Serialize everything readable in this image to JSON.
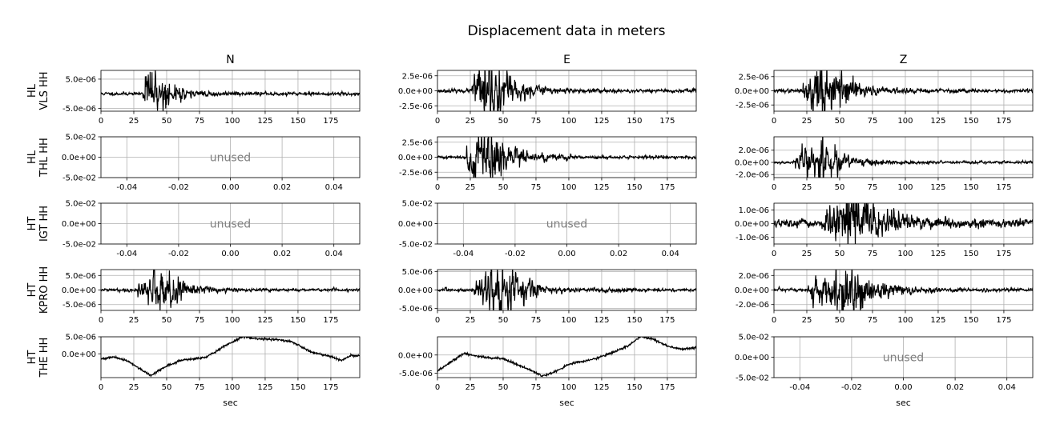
{
  "figure": {
    "title": "Displacement data in meters"
  },
  "chart_data": {
    "type": "line",
    "title": "Displacement data in meters",
    "columns": [
      "N",
      "E",
      "Z"
    ],
    "rows": [
      {
        "label_line1": "HL",
        "label_line2": "VLS HH"
      },
      {
        "label_line1": "HL",
        "label_line2": "THL HH"
      },
      {
        "label_line1": "HT",
        "label_line2": "IGT HH"
      },
      {
        "label_line1": "HT",
        "label_line2": "KPRO HH"
      },
      {
        "label_line1": "HT",
        "label_line2": "THE HH"
      }
    ],
    "grid": true,
    "line_color": "#000000",
    "unused_color": "#7f7f7f",
    "xlabel": "sec",
    "panels": [
      {
        "row": 0,
        "col": 0,
        "unused": false,
        "ylim": [
          -6e-06,
          8e-06
        ],
        "yticks": [
          "5.0e-06",
          "-5.0e-06"
        ],
        "ytick_values": [
          5e-06,
          -5e-06
        ],
        "xlim": [
          0,
          197
        ],
        "xticks": [
          0,
          25,
          50,
          75,
          100,
          125,
          150,
          175
        ],
        "onset": 32,
        "peak_t": 38,
        "env_amp": 4e-06,
        "decay": 14,
        "noise": 2.5e-07,
        "seed": 11
      },
      {
        "row": 0,
        "col": 1,
        "unused": false,
        "ylim": [
          -3.4e-06,
          3.4e-06
        ],
        "yticks": [
          "2.5e-06",
          "0.0e+00",
          "-2.5e-06"
        ],
        "ytick_values": [
          2.5e-06,
          0,
          -2.5e-06
        ],
        "xlim": [
          0,
          197
        ],
        "xticks": [
          0,
          25,
          50,
          75,
          100,
          125,
          150,
          175
        ],
        "onset": 26,
        "peak_t": 40,
        "env_amp": 2.6e-06,
        "decay": 16,
        "noise": 1.3e-07,
        "seed": 23
      },
      {
        "row": 0,
        "col": 2,
        "unused": false,
        "ylim": [
          -3.6e-06,
          3.6e-06
        ],
        "yticks": [
          "2.5e-06",
          "0.0e+00",
          "-2.5e-06"
        ],
        "ytick_values": [
          2.5e-06,
          0,
          -2.5e-06
        ],
        "xlim": [
          0,
          197
        ],
        "xticks": [
          0,
          25,
          50,
          75,
          100,
          125,
          150,
          175
        ],
        "onset": 22,
        "peak_t": 36,
        "env_amp": 2.7e-06,
        "decay": 18,
        "noise": 1.4e-07,
        "seed": 37
      },
      {
        "row": 1,
        "col": 0,
        "unused": true,
        "unused_label": "unused",
        "ylim": [
          -0.05,
          0.05
        ],
        "yticks": [
          "5.0e-02",
          "0.0e+00",
          "-5.0e-02"
        ],
        "ytick_values": [
          0.05,
          0,
          -0.05
        ],
        "xlim": [
          -0.05,
          0.05
        ],
        "xticks": [
          "-0.04",
          "-0.02",
          "0.00",
          "0.02",
          "0.04"
        ],
        "xtick_values": [
          -0.04,
          -0.02,
          0,
          0.02,
          0.04
        ]
      },
      {
        "row": 1,
        "col": 1,
        "unused": false,
        "ylim": [
          -3.4e-06,
          3.4e-06
        ],
        "yticks": [
          "2.5e-06",
          "0.0e+00",
          "-2.5e-06"
        ],
        "ytick_values": [
          2.5e-06,
          0,
          -2.5e-06
        ],
        "xlim": [
          0,
          197
        ],
        "xticks": [
          0,
          25,
          50,
          75,
          100,
          125,
          150,
          175
        ],
        "onset": 22,
        "peak_t": 36,
        "env_amp": 2.6e-06,
        "decay": 17,
        "noise": 1.2e-07,
        "seed": 41
      },
      {
        "row": 1,
        "col": 2,
        "unused": false,
        "ylim": [
          -2.5e-06,
          4.2e-06
        ],
        "yticks": [
          "2.0e-06",
          "0.0e+00",
          "-2.0e-06"
        ],
        "ytick_values": [
          2e-06,
          0,
          -2e-06
        ],
        "xlim": [
          0,
          197
        ],
        "xticks": [
          0,
          25,
          50,
          75,
          100,
          125,
          150,
          175
        ],
        "onset": 16,
        "peak_t": 35,
        "env_amp": 1.9e-06,
        "decay": 15,
        "noise": 1e-07,
        "seed": 53
      },
      {
        "row": 2,
        "col": 0,
        "unused": true,
        "unused_label": "unused",
        "ylim": [
          -0.05,
          0.05
        ],
        "yticks": [
          "5.0e-02",
          "0.0e+00",
          "-5.0e-02"
        ],
        "ytick_values": [
          0.05,
          0,
          -0.05
        ],
        "xlim": [
          -0.05,
          0.05
        ],
        "xticks": [
          "-0.04",
          "-0.02",
          "0.00",
          "0.02",
          "0.04"
        ],
        "xtick_values": [
          -0.04,
          -0.02,
          0,
          0.02,
          0.04
        ]
      },
      {
        "row": 2,
        "col": 1,
        "unused": true,
        "unused_label": "unused",
        "ylim": [
          -0.05,
          0.05
        ],
        "yticks": [
          "5.0e-02",
          "0.0e+00",
          "-5.0e-02"
        ],
        "ytick_values": [
          0.05,
          0,
          -0.05
        ],
        "xlim": [
          -0.05,
          0.05
        ],
        "xticks": [
          "-0.04",
          "-0.02",
          "0.00",
          "0.02",
          "0.04"
        ],
        "xtick_values": [
          -0.04,
          -0.02,
          0,
          0.02,
          0.04
        ]
      },
      {
        "row": 2,
        "col": 2,
        "unused": false,
        "ylim": [
          -1.5e-06,
          1.5e-06
        ],
        "yticks": [
          "1.0e-06",
          "0.0e+00",
          "-1.0e-06"
        ],
        "ytick_values": [
          1e-06,
          0,
          -1e-06
        ],
        "xlim": [
          0,
          197
        ],
        "xticks": [
          0,
          25,
          50,
          75,
          100,
          125,
          150,
          175
        ],
        "onset": 38,
        "peak_t": 58,
        "env_amp": 8e-07,
        "decay": 25,
        "noise": 1.4e-07,
        "seed": 67
      },
      {
        "row": 3,
        "col": 0,
        "unused": false,
        "ylim": [
          -7e-06,
          7e-06
        ],
        "yticks": [
          "5.0e-06",
          "0.0e+00",
          "-5.0e-06"
        ],
        "ytick_values": [
          5e-06,
          0,
          -5e-06
        ],
        "xlim": [
          0,
          197
        ],
        "xticks": [
          0,
          25,
          50,
          75,
          100,
          125,
          150,
          175
        ],
        "onset": 28,
        "peak_t": 50,
        "env_amp": 3.5e-06,
        "decay": 14,
        "noise": 2.2e-07,
        "seed": 79
      },
      {
        "row": 3,
        "col": 1,
        "unused": false,
        "ylim": [
          -5.5e-06,
          5.5e-06
        ],
        "yticks": [
          "5.0e-06",
          "0.0e+00",
          "-5.0e-06"
        ],
        "ytick_values": [
          5e-06,
          0,
          -5e-06
        ],
        "xlim": [
          0,
          197
        ],
        "xticks": [
          0,
          25,
          50,
          75,
          100,
          125,
          150,
          175
        ],
        "onset": 28,
        "peak_t": 52,
        "env_amp": 3.2e-06,
        "decay": 16,
        "noise": 2e-07,
        "seed": 83
      },
      {
        "row": 3,
        "col": 2,
        "unused": false,
        "ylim": [
          -2.8e-06,
          2.8e-06
        ],
        "yticks": [
          "2.0e-06",
          "0.0e+00",
          "-2.0e-06"
        ],
        "ytick_values": [
          2e-06,
          0,
          -2e-06
        ],
        "xlim": [
          0,
          197
        ],
        "xticks": [
          0,
          25,
          50,
          75,
          100,
          125,
          150,
          175
        ],
        "onset": 25,
        "peak_t": 58,
        "env_amp": 1.6e-06,
        "decay": 20,
        "noise": 1.1e-07,
        "seed": 97
      },
      {
        "row": 4,
        "col": 0,
        "unused": false,
        "ylim": [
          -7e-06,
          5e-06
        ],
        "yticks": [
          "5.0e-06",
          "0.0e+00"
        ],
        "ytick_values": [
          5e-06,
          0
        ],
        "xlim": [
          0,
          197
        ],
        "xticks": [
          0,
          25,
          50,
          75,
          100,
          125,
          150,
          175
        ],
        "trend": [
          [
            0,
            -1.5e-06
          ],
          [
            10,
            -1e-06
          ],
          [
            20,
            -2e-06
          ],
          [
            30,
            -4.5e-06
          ],
          [
            38,
            -6.4e-06
          ],
          [
            48,
            -4e-06
          ],
          [
            60,
            -2e-06
          ],
          [
            80,
            -1e-06
          ],
          [
            95,
            2.5e-06
          ],
          [
            108,
            5e-06
          ],
          [
            120,
            4.4e-06
          ],
          [
            135,
            4.2e-06
          ],
          [
            145,
            3.6e-06
          ],
          [
            160,
            5e-07
          ],
          [
            175,
            -8e-07
          ],
          [
            183,
            -2e-06
          ],
          [
            190,
            -6e-07
          ],
          [
            197,
            -6e-07
          ]
        ],
        "noise": 1.5e-07,
        "seed": 101
      },
      {
        "row": 4,
        "col": 1,
        "unused": false,
        "ylim": [
          -6.2e-06,
          5e-06
        ],
        "yticks": [
          "0.0e+00",
          "-5.0e-06"
        ],
        "ytick_values": [
          0,
          -5e-06
        ],
        "xlim": [
          0,
          197
        ],
        "xticks": [
          0,
          25,
          50,
          75,
          100,
          125,
          150,
          175
        ],
        "trend": [
          [
            0,
            -4.5e-06
          ],
          [
            10,
            -2e-06
          ],
          [
            20,
            5e-07
          ],
          [
            30,
            -3e-07
          ],
          [
            40,
            -8e-07
          ],
          [
            50,
            -1e-06
          ],
          [
            60,
            -2.5e-06
          ],
          [
            70,
            -4e-06
          ],
          [
            80,
            -5.8e-06
          ],
          [
            90,
            -4.5e-06
          ],
          [
            100,
            -2.5e-06
          ],
          [
            110,
            -1.8e-06
          ],
          [
            120,
            -1e-06
          ],
          [
            130,
            2e-07
          ],
          [
            145,
            2.5e-06
          ],
          [
            155,
            5.2e-06
          ],
          [
            165,
            4.2e-06
          ],
          [
            175,
            2.5e-06
          ],
          [
            185,
            1.6e-06
          ],
          [
            197,
            2e-06
          ]
        ],
        "noise": 1.5e-07,
        "seed": 113
      },
      {
        "row": 4,
        "col": 2,
        "unused": true,
        "unused_label": "unused",
        "ylim": [
          -0.05,
          0.05
        ],
        "yticks": [
          "5.0e-02",
          "0.0e+00",
          "-5.0e-02"
        ],
        "ytick_values": [
          0.05,
          0,
          -0.05
        ],
        "xlim": [
          -0.05,
          0.05
        ],
        "xticks": [
          "-0.04",
          "-0.02",
          "0.00",
          "0.02",
          "0.04"
        ],
        "xtick_values": [
          -0.04,
          -0.02,
          0,
          0.02,
          0.04
        ]
      }
    ]
  }
}
